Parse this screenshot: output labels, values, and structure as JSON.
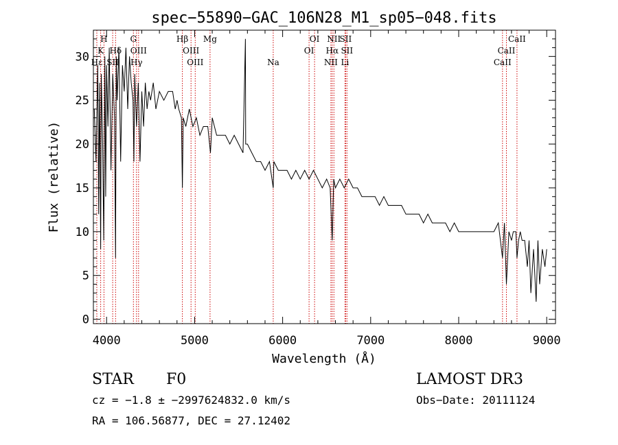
{
  "chart_data": {
    "type": "line",
    "title": "spec−55890−GAC_106N28_M1_sp05−048.fits",
    "xlabel": "Wavelength (Å)",
    "ylabel": "Flux (relative)",
    "xlim": [
      3850,
      9100
    ],
    "ylim": [
      -0.5,
      33
    ],
    "xticks": [
      {
        "value": 4000,
        "label": "4000"
      },
      {
        "value": 5000,
        "label": "5000"
      },
      {
        "value": 6000,
        "label": "6000"
      },
      {
        "value": 7000,
        "label": "7000"
      },
      {
        "value": 8000,
        "label": "8000"
      },
      {
        "value": 9000,
        "label": "9000"
      }
    ],
    "yticks": [
      {
        "value": 0,
        "label": "0"
      },
      {
        "value": 5,
        "label": "5"
      },
      {
        "value": 10,
        "label": "10"
      },
      {
        "value": 15,
        "label": "15"
      },
      {
        "value": 20,
        "label": "20"
      },
      {
        "value": 25,
        "label": "25"
      },
      {
        "value": 30,
        "label": "30"
      }
    ],
    "line_color": "#000000",
    "marker_color": "#cc0000",
    "series": [
      {
        "name": "flux",
        "x": [
          3860,
          3880,
          3900,
          3910,
          3920,
          3933,
          3940,
          3955,
          3968,
          3980,
          3990,
          4000,
          4015,
          4030,
          4050,
          4070,
          4090,
          4102,
          4110,
          4120,
          4140,
          4160,
          4180,
          4200,
          4220,
          4240,
          4260,
          4280,
          4300,
          4310,
          4320,
          4340,
          4360,
          4380,
          4400,
          4420,
          4440,
          4460,
          4480,
          4500,
          4530,
          4560,
          4600,
          4650,
          4700,
          4750,
          4780,
          4800,
          4820,
          4850,
          4861,
          4870,
          4900,
          4940,
          4980,
          5020,
          5060,
          5100,
          5150,
          5180,
          5200,
          5250,
          5300,
          5350,
          5400,
          5450,
          5500,
          5550,
          5577,
          5580,
          5600,
          5650,
          5700,
          5750,
          5800,
          5850,
          5893,
          5900,
          5950,
          6000,
          6050,
          6100,
          6150,
          6200,
          6250,
          6300,
          6350,
          6400,
          6450,
          6500,
          6540,
          6563,
          6580,
          6600,
          6650,
          6700,
          6750,
          6800,
          6850,
          6900,
          6950,
          7000,
          7050,
          7100,
          7150,
          7200,
          7250,
          7300,
          7350,
          7400,
          7450,
          7500,
          7550,
          7600,
          7650,
          7700,
          7750,
          7800,
          7850,
          7900,
          7950,
          8000,
          8050,
          8100,
          8150,
          8200,
          8250,
          8300,
          8350,
          8400,
          8450,
          8498,
          8520,
          8542,
          8570,
          8600,
          8620,
          8650,
          8662,
          8680,
          8700,
          8720,
          8750,
          8780,
          8800,
          8820,
          8850,
          8880,
          8900,
          8920,
          8950,
          8980,
          9000
        ],
        "y": [
          24,
          18,
          29,
          12,
          27,
          8,
          28,
          20,
          9,
          30,
          14,
          29,
          22,
          31,
          17,
          28,
          23,
          7,
          30,
          25,
          31,
          18,
          29,
          26,
          31,
          24,
          30,
          27,
          25,
          18,
          28,
          22,
          27,
          18,
          26,
          22,
          27,
          24,
          26,
          25,
          27,
          24,
          26,
          25,
          26,
          26,
          24,
          25,
          24,
          23,
          15,
          23,
          22,
          24,
          22,
          23,
          21,
          22,
          22,
          19,
          23,
          21,
          21,
          21,
          20,
          21,
          20,
          19,
          32,
          20,
          20,
          19,
          18,
          18,
          17,
          18,
          15,
          18,
          17,
          17,
          17,
          16,
          17,
          16,
          17,
          16,
          17,
          16,
          15,
          16,
          15,
          9,
          16,
          15,
          16,
          15,
          16,
          15,
          15,
          14,
          14,
          14,
          14,
          13,
          14,
          13,
          13,
          13,
          13,
          12,
          12,
          12,
          12,
          11,
          12,
          11,
          11,
          11,
          11,
          10,
          11,
          10,
          10,
          10,
          10,
          10,
          10,
          10,
          10,
          10,
          11,
          7,
          11,
          4,
          10,
          9,
          10,
          10,
          7,
          9,
          10,
          9,
          9,
          6,
          9,
          3,
          8,
          2,
          9,
          4,
          8,
          6,
          8
        ]
      }
    ],
    "lines": [
      {
        "name": "H",
        "wavelength": 3970,
        "row": 0
      },
      {
        "name": "K",
        "wavelength": 3933,
        "row": 1
      },
      {
        "name": "Hδ",
        "wavelength": 4102,
        "row": 1
      },
      {
        "name": "Hε",
        "wavelength": 3889,
        "row": 2
      },
      {
        "name": "SII",
        "wavelength": 4069,
        "row": 2
      },
      {
        "name": "G",
        "wavelength": 4305,
        "row": 0
      },
      {
        "name": "OIII",
        "wavelength": 4363,
        "row": 1
      },
      {
        "name": "Hγ",
        "wavelength": 4340,
        "row": 2
      },
      {
        "name": "Hβ",
        "wavelength": 4861,
        "row": 0
      },
      {
        "name": "OIII",
        "wavelength": 4959,
        "row": 1
      },
      {
        "name": "OIII",
        "wavelength": 5007,
        "row": 2
      },
      {
        "name": "Mg",
        "wavelength": 5175,
        "row": 0
      },
      {
        "name": "Na",
        "wavelength": 5893,
        "row": 2
      },
      {
        "name": "OI",
        "wavelength": 6363,
        "row": 0
      },
      {
        "name": "OI",
        "wavelength": 6300,
        "row": 1
      },
      {
        "name": "NII",
        "wavelength": 6583,
        "row": 0
      },
      {
        "name": "Hα",
        "wavelength": 6563,
        "row": 1
      },
      {
        "name": "NII",
        "wavelength": 6548,
        "row": 2
      },
      {
        "name": "SII",
        "wavelength": 6716,
        "row": 0
      },
      {
        "name": "SII",
        "wavelength": 6731,
        "row": 1
      },
      {
        "name": "Li",
        "wavelength": 6708,
        "row": 2
      },
      {
        "name": "CaII",
        "wavelength": 8662,
        "row": 0
      },
      {
        "name": "CaII",
        "wavelength": 8542,
        "row": 1
      },
      {
        "name": "CaII",
        "wavelength": 8498,
        "row": 2
      }
    ]
  },
  "info": {
    "class_label": "STAR",
    "subclass": "F0",
    "cz_text": "cz = −1.8 ± −2997624832.0 km/s",
    "radec_text": "RA = 106.56877, DEC =  27.12402",
    "survey": "LAMOST DR3",
    "obs_date": "Obs−Date: 20111124"
  }
}
